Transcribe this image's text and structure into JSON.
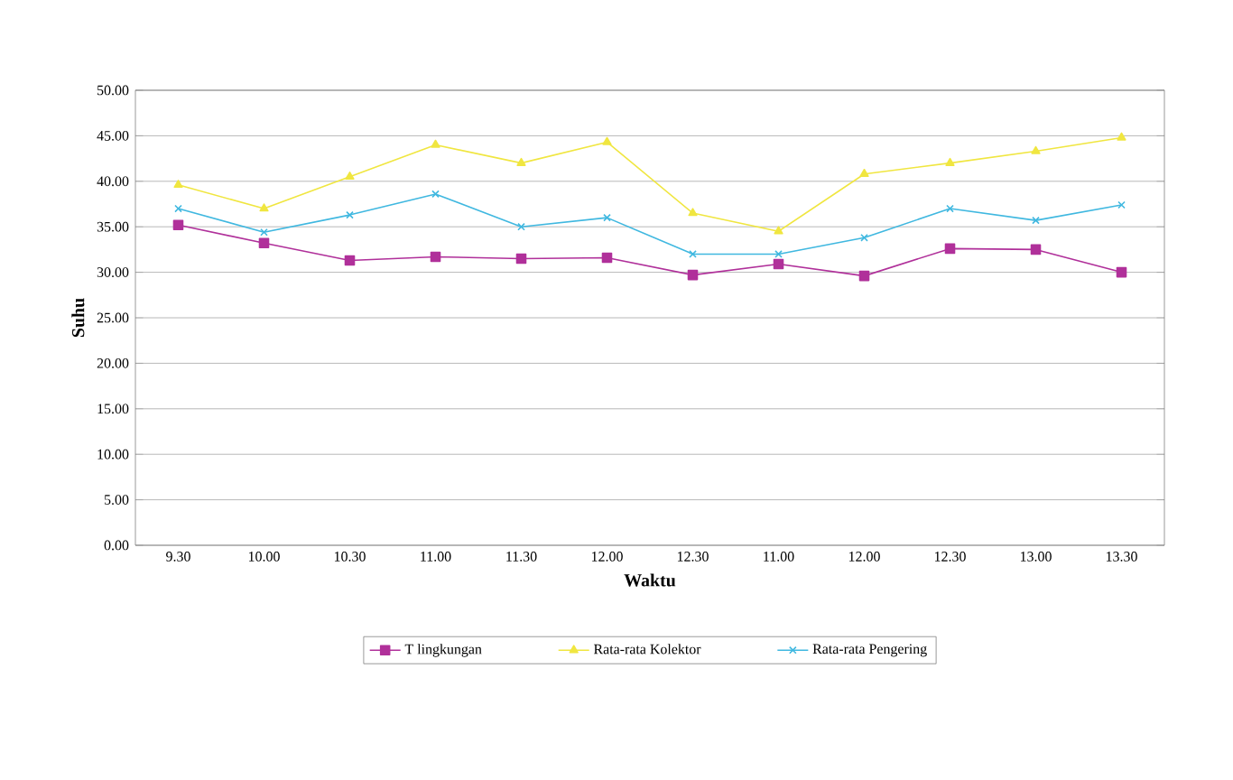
{
  "chart_data": {
    "type": "line",
    "xlabel": "Waktu",
    "ylabel": "Suhu",
    "categories": [
      "9.30",
      "10.00",
      "10.30",
      "11.00",
      "11.30",
      "12.00",
      "12.30",
      "11.00",
      "12.00",
      "12.30",
      "13.00",
      "13.30"
    ],
    "series": [
      {
        "name": "T lingkungan",
        "color": "#b0309a",
        "marker": "square",
        "values": [
          35.2,
          33.2,
          31.3,
          31.7,
          31.5,
          31.6,
          29.7,
          30.9,
          29.6,
          32.6,
          32.5,
          30.0
        ]
      },
      {
        "name": "Rata-rata Kolektor",
        "color": "#f0e640",
        "marker": "triangle",
        "values": [
          39.6,
          37.0,
          40.5,
          44.0,
          42.0,
          44.3,
          36.5,
          34.5,
          40.8,
          42.0,
          43.3,
          44.8
        ]
      },
      {
        "name": "Rata-rata Pengering",
        "color": "#40b8e0",
        "marker": "cross",
        "values": [
          37.0,
          34.4,
          36.3,
          38.6,
          35.0,
          36.0,
          32.0,
          32.0,
          33.8,
          37.0,
          35.7,
          37.4
        ]
      }
    ],
    "ylim": [
      0,
      50
    ],
    "yticks": [
      {
        "value": 0,
        "label": "0.00"
      },
      {
        "value": 5,
        "label": "5.00"
      },
      {
        "value": 10,
        "label": "10.00"
      },
      {
        "value": 15,
        "label": "15.00"
      },
      {
        "value": 20,
        "label": "20.00"
      },
      {
        "value": 25,
        "label": "25.00"
      },
      {
        "value": 30,
        "label": "30.00"
      },
      {
        "value": 35,
        "label": "35.00"
      },
      {
        "value": 40,
        "label": "40.00"
      },
      {
        "value": 45,
        "label": "45.00"
      },
      {
        "value": 50,
        "label": "50.00"
      }
    ],
    "grid": "y",
    "legend": "bottom",
    "line_style": "solid"
  }
}
